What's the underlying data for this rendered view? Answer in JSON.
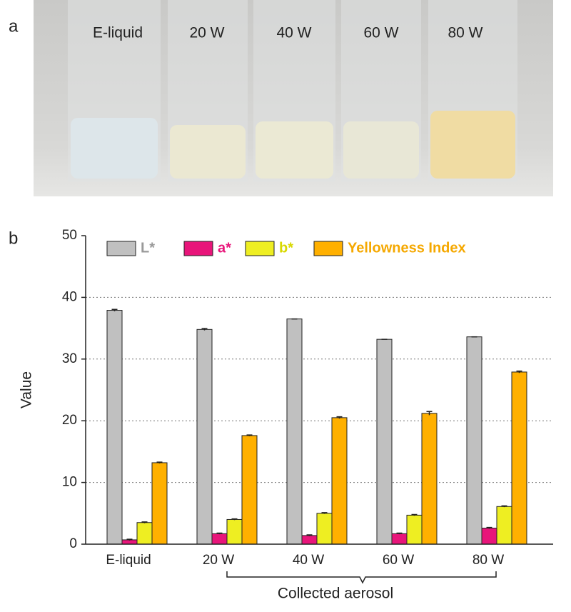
{
  "panel_a": {
    "label": "a",
    "vial_labels": [
      "E-liquid",
      "20 W",
      "40 W",
      "60 W",
      "80 W"
    ]
  },
  "chart_data": {
    "type": "bar",
    "panel_label": "b",
    "y_label": "Value",
    "annotation": "Collected aerosol",
    "categories": [
      "E-liquid",
      "20 W",
      "40 W",
      "60 W",
      "80 W"
    ],
    "series": [
      {
        "name": "L*",
        "color": "#c0c0c0",
        "values": [
          37.9,
          34.8,
          36.5,
          33.2,
          33.6
        ],
        "errors": [
          0.15,
          0.15,
          0,
          0,
          0
        ]
      },
      {
        "name": "a*",
        "color": "#e8157a",
        "values": [
          0.7,
          1.7,
          1.4,
          1.7,
          2.6
        ],
        "errors": [
          0.1,
          0.1,
          0.1,
          0.1,
          0.1
        ]
      },
      {
        "name": "b*",
        "color": "#eeee22",
        "values": [
          3.5,
          4.0,
          5.0,
          4.7,
          6.1
        ],
        "errors": [
          0.1,
          0.1,
          0.1,
          0.1,
          0.1
        ]
      },
      {
        "name": "Yellowness Index",
        "color": "#ffb000",
        "values": [
          13.2,
          17.6,
          20.5,
          21.2,
          27.9
        ],
        "errors": [
          0.1,
          0.1,
          0.15,
          0.3,
          0.15
        ]
      }
    ],
    "ylim": [
      0,
      50
    ],
    "yticks": [
      0,
      10,
      20,
      30,
      40,
      50
    ],
    "grid": true
  }
}
